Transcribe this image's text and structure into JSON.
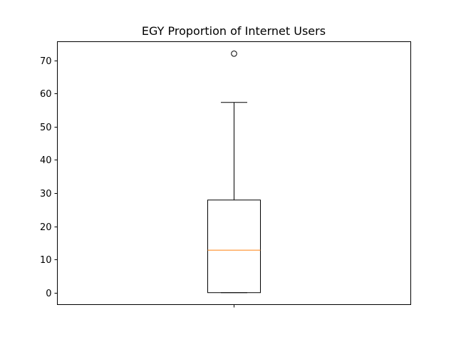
{
  "chart_data": {
    "type": "boxplot",
    "title": "EGY Proportion of Internet Users",
    "xlabel": "",
    "ylabel": "",
    "categories": [
      ""
    ],
    "ylim": [
      -3.6,
      75.6
    ],
    "yticks": [
      0,
      10,
      20,
      30,
      40,
      50,
      60,
      70
    ],
    "grid": false,
    "box": {
      "whisker_low": 0.0,
      "q1": 0.0,
      "median": 12.8,
      "q3": 27.9,
      "whisker_high": 57.3,
      "outliers": [
        72.0
      ]
    },
    "colors": {
      "box": "#000000",
      "median": "#ff7f0e",
      "outlier": "#000000"
    }
  }
}
